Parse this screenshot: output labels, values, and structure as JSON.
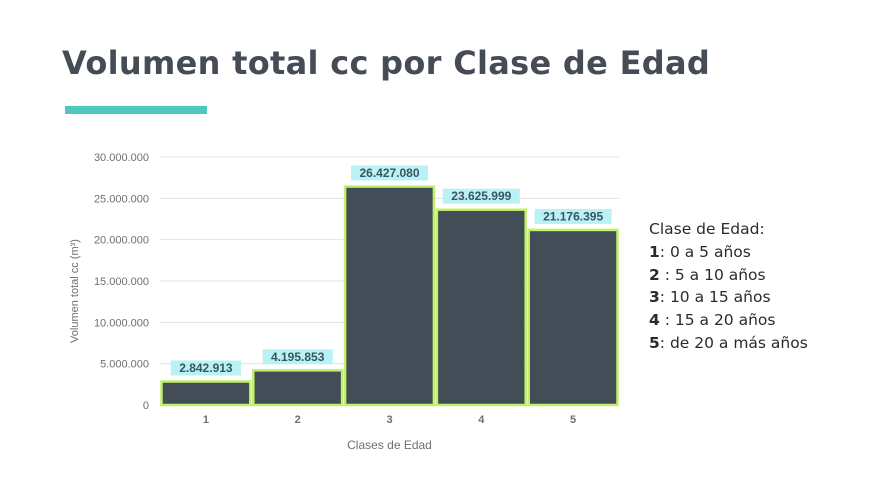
{
  "title": "Volumen total cc por Clase de Edad",
  "colors": {
    "title": "#454c55",
    "accent": "#4ec7bd",
    "bar_fill": "#434d57",
    "bar_stroke": "#c3ef6e",
    "label_bg": "#b8f2f5",
    "label_text": "#3a5561",
    "grid": "#e3e3e3",
    "axis_text": "#6f6f6f"
  },
  "chart_data": {
    "type": "bar",
    "categories": [
      "1",
      "2",
      "3",
      "4",
      "5"
    ],
    "values": [
      2842913,
      4195853,
      26427080,
      23625999,
      21176395
    ],
    "value_labels": [
      "2.842.913",
      "4.195.853",
      "26.427.080",
      "23.625.999",
      "21.176.395"
    ],
    "xlabel": "Clases de Edad",
    "ylabel": "Volumen total cc (m³)",
    "ylim": [
      0,
      30000000
    ],
    "yticks": [
      0,
      5000000,
      10000000,
      15000000,
      20000000,
      25000000,
      30000000
    ],
    "ytick_labels": [
      "0",
      "5.000.000",
      "10.000.000",
      "15.000.000",
      "20.000.000",
      "25.000.000",
      "30.000.000"
    ],
    "grid": true,
    "legend": "none"
  },
  "legend": {
    "heading": "Clase de Edad:",
    "items": [
      {
        "num": "1",
        "text": ": 0 a 5 años"
      },
      {
        "num": "2",
        "text": " : 5 a 10 años"
      },
      {
        "num": "3",
        "text": ": 10 a 15 años"
      },
      {
        "num": "4",
        "text": " : 15 a 20 años"
      },
      {
        "num": "5",
        "text": ": de 20 a más años"
      }
    ]
  }
}
